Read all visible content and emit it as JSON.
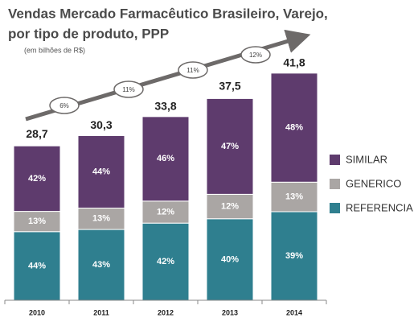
{
  "chart_data": {
    "type": "stacked-bar",
    "title": "Vendas Mercado Farmacêutico Brasileiro, Varejo,",
    "title_line2": "por tipo de produto, PPP",
    "subtitle": "(em bilhões de R$)",
    "categories": [
      "2010",
      "2011",
      "2012",
      "2013",
      "2014"
    ],
    "totals": [
      {
        "value": 28.7,
        "label": "28,7"
      },
      {
        "value": 30.3,
        "label": "30,3"
      },
      {
        "value": 33.8,
        "label": "33,8"
      },
      {
        "value": 37.5,
        "label": "37,5"
      },
      {
        "value": 41.8,
        "label": "41,8"
      }
    ],
    "series": [
      {
        "name": "REFERENCIA",
        "color": "#2f7f8f",
        "values": [
          44,
          43,
          42,
          40,
          39
        ],
        "value_labels": [
          "44%",
          "43%",
          "42%",
          "40%",
          "39%"
        ]
      },
      {
        "name": "GENERICO",
        "color": "#aaa6a4",
        "values": [
          13,
          13,
          12,
          12,
          13
        ],
        "value_labels": [
          "13%",
          "13%",
          "12%",
          "12%",
          "13%"
        ]
      },
      {
        "name": "SIMILAR",
        "color": "#5e3b6d",
        "values": [
          42,
          44,
          46,
          47,
          48
        ],
        "value_labels": [
          "42%",
          "44%",
          "46%",
          "47%",
          "48%"
        ]
      }
    ],
    "growth": [
      {
        "value": 6,
        "label": "6%"
      },
      {
        "value": 11,
        "label": "11%"
      },
      {
        "value": 11,
        "label": "11%"
      },
      {
        "value": 12,
        "label": "12%"
      }
    ]
  }
}
